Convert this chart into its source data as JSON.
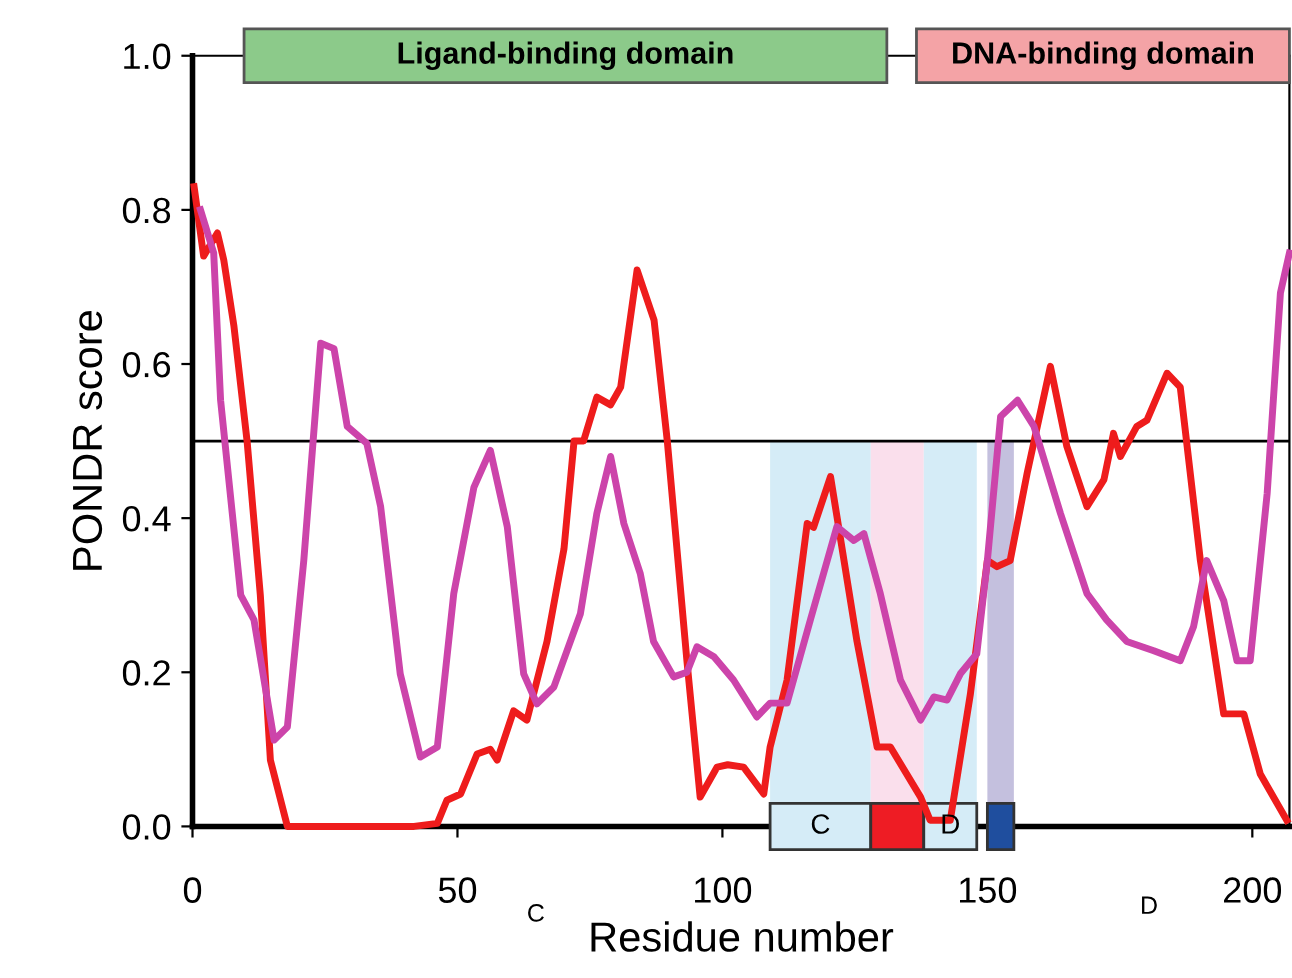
{
  "chart_data": {
    "type": "line",
    "xlabel": "Residue number",
    "ylabel": "PONDR score",
    "series": [
      {
        "color": "#ee1c1c",
        "x": [
          0.3,
          2.1,
          4.7,
          5.9,
          7.8,
          10.3,
          12.8,
          14.7,
          17.9,
          41.8,
          46.2,
          48,
          50.6,
          53.7,
          56.2,
          57.5,
          60.6,
          63.1,
          66.9,
          70.1,
          72,
          73.8,
          76.3,
          78.9,
          80.8,
          83.9,
          87.1,
          89.6,
          93.3,
          95.8,
          99,
          101,
          104,
          107.8,
          109,
          112.2,
          116,
          117.2,
          120.4,
          125.4,
          129.2,
          131.7,
          137.4,
          139.2,
          143,
          146.8,
          150,
          151.8,
          154.3,
          157.5,
          161.9,
          165,
          168.8,
          172,
          173.8,
          175.1,
          178.2,
          180.1,
          183.9,
          186.4,
          190.2,
          194.6,
          198.4,
          201.5,
          206.5
        ],
        "values": [
          0.83,
          0.74,
          0.77,
          0.735,
          0.65,
          0.5,
          0.3,
          0.086,
          0,
          0,
          0.004,
          0.034,
          0.042,
          0.094,
          0.1,
          0.086,
          0.15,
          0.138,
          0.24,
          0.36,
          0.5,
          0.5,
          0.557,
          0.547,
          0.57,
          0.722,
          0.657,
          0.5,
          0.215,
          0.038,
          0.077,
          0.08,
          0.077,
          0.042,
          0.103,
          0.19,
          0.393,
          0.388,
          0.454,
          0.24,
          0.103,
          0.103,
          0.038,
          0.008,
          0.008,
          0.172,
          0.345,
          0.337,
          0.345,
          0.458,
          0.597,
          0.493,
          0.415,
          0.45,
          0.51,
          0.48,
          0.519,
          0.527,
          0.588,
          0.57,
          0.345,
          0.146,
          0.146,
          0.068,
          0.008
        ]
      },
      {
        "color": "#cc44aa",
        "x": [
          1.5,
          4,
          5.3,
          9.1,
          11.6,
          15.4,
          17.9,
          21,
          24.2,
          26.7,
          29.2,
          32.9,
          35.5,
          39.2,
          43,
          46.2,
          49.3,
          53.1,
          56.2,
          59.4,
          62.5,
          65,
          68.2,
          73.2,
          76.3,
          78.9,
          81.4,
          84.5,
          87,
          90.8,
          93.3,
          95.2,
          98.4,
          102.1,
          106.5,
          109,
          112.2,
          116.6,
          121.6,
          124.8,
          126.7,
          129.8,
          133.6,
          137.4,
          139.9,
          142.4,
          144.9,
          148,
          150,
          152.5,
          155.7,
          158.8,
          163.8,
          168.8,
          172.5,
          176.3,
          181.4,
          186.4,
          188.9,
          191.4,
          194.6,
          197.1,
          199.6,
          202.8,
          205.3,
          207
        ],
        "values": [
          0.8,
          0.744,
          0.553,
          0.3,
          0.268,
          0.112,
          0.129,
          0.345,
          0.627,
          0.62,
          0.519,
          0.497,
          0.415,
          0.198,
          0.09,
          0.103,
          0.302,
          0.44,
          0.488,
          0.389,
          0.198,
          0.159,
          0.181,
          0.276,
          0.406,
          0.48,
          0.393,
          0.328,
          0.24,
          0.194,
          0.2,
          0.233,
          0.22,
          0.19,
          0.142,
          0.16,
          0.16,
          0.268,
          0.389,
          0.371,
          0.38,
          0.302,
          0.19,
          0.138,
          0.168,
          0.164,
          0.198,
          0.224,
          0.345,
          0.532,
          0.553,
          0.519,
          0.406,
          0.302,
          0.268,
          0.24,
          0.228,
          0.215,
          0.259,
          0.345,
          0.293,
          0.215,
          0.215,
          0.432,
          0.692,
          0.744
        ]
      }
    ],
    "xlim": [
      0,
      207
    ],
    "ylim": [
      0,
      1
    ],
    "xticks": [
      0,
      50,
      100,
      150,
      200
    ],
    "yticks": [
      {
        "value": 0,
        "label": "0.0"
      },
      {
        "value": 0.2,
        "label": "0.2"
      },
      {
        "value": 0.4,
        "label": "0.4"
      },
      {
        "value": 0.6,
        "label": "0.6"
      },
      {
        "value": 0.8,
        "label": "0.8"
      },
      {
        "value": 1,
        "label": "1.0"
      }
    ],
    "ref_lines": [
      {
        "axis": "y",
        "value": 0.5,
        "color": "#000000"
      }
    ],
    "bands": [
      {
        "axis": "x",
        "from": 109,
        "to": 128,
        "label": "C",
        "color": "#d5ecf7"
      },
      {
        "axis": "x",
        "from": 128,
        "to": 138,
        "color": "#fadfec"
      },
      {
        "axis": "x",
        "from": 138,
        "to": 148,
        "label": "D",
        "color": "#d5ecf7"
      },
      {
        "axis": "x",
        "from": 150,
        "to": 155,
        "color": "#c4c0de"
      }
    ],
    "annotations": [
      "Ligand-binding domain",
      "DNA-binding domain",
      "C",
      "D"
    ],
    "grid": false,
    "legend": false,
    "marker": "none",
    "line_style": "solid"
  }
}
